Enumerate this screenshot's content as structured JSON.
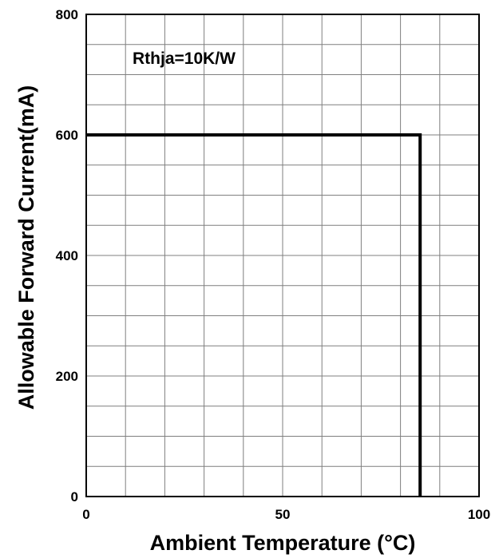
{
  "chart_data": {
    "type": "line",
    "title": "",
    "xlabel": "Ambient Temperature (°C)",
    "ylabel": "Allowable Forward Current(mA)",
    "xlim": [
      0,
      100
    ],
    "ylim": [
      0,
      800
    ],
    "x_ticks": [
      "0",
      "50",
      "100"
    ],
    "y_ticks": [
      "0",
      "200",
      "400",
      "600",
      "800"
    ],
    "grid": true,
    "annotation": "Rthja=10K/W",
    "series": [
      {
        "x": [
          0,
          85,
          85
        ],
        "y": [
          600,
          600,
          0
        ]
      }
    ],
    "colors": {
      "line": "#000000",
      "grid": "#7f7f7f",
      "frame": "#000000"
    }
  }
}
